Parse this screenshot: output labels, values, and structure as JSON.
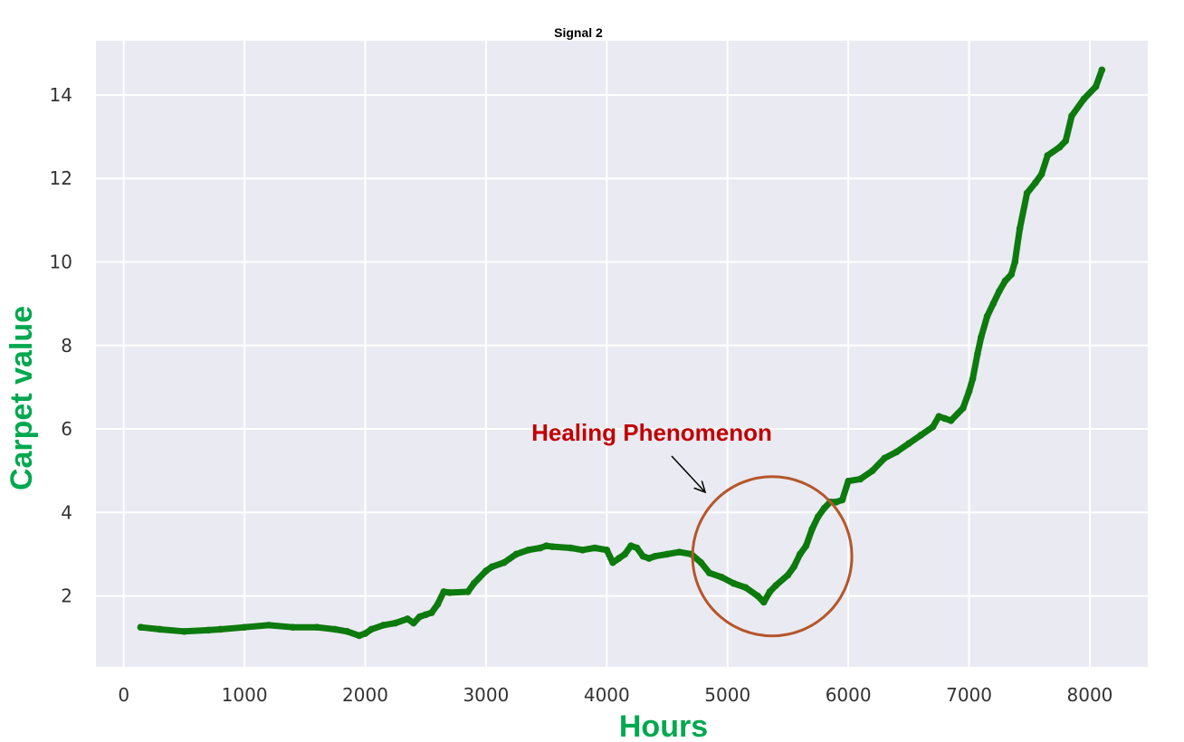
{
  "chart_data": {
    "type": "line",
    "title": "Signal 2",
    "xlabel": "Hours",
    "ylabel": "Carpet value",
    "xlim": [
      -230,
      8480
    ],
    "ylim": [
      0.3,
      15.3
    ],
    "x_ticks": [
      0,
      1000,
      2000,
      3000,
      4000,
      5000,
      6000,
      7000,
      8000
    ],
    "y_ticks": [
      2,
      4,
      6,
      8,
      10,
      12,
      14
    ],
    "grid": true,
    "colors": {
      "line": "#0d7a0d",
      "axis_label": "#00a84f",
      "plot_background": "#eaeaf2",
      "grid": "#ffffff",
      "annotation_text": "#c00000",
      "circle": "#b5562a"
    },
    "series": [
      {
        "x": [
          140,
          300,
          500,
          700,
          800,
          1000,
          1200,
          1400,
          1600,
          1750,
          1850,
          1950,
          2000,
          2050,
          2150,
          2250,
          2350,
          2400,
          2450,
          2500,
          2550,
          2600,
          2650,
          2700,
          2850,
          2900,
          3000,
          3050,
          3150,
          3250,
          3350,
          3450,
          3500,
          3550,
          3700,
          3800,
          3900,
          4000,
          4050,
          4100,
          4150,
          4200,
          4250,
          4300,
          4350,
          4400,
          4500,
          4600,
          4700,
          4780,
          4850,
          4950,
          5050,
          5150,
          5250,
          5300,
          5350,
          5400,
          5500,
          5550,
          5600,
          5650,
          5700,
          5750,
          5800,
          5850,
          5900,
          5950,
          6000,
          6100,
          6200,
          6300,
          6400,
          6500,
          6600,
          6700,
          6750,
          6800,
          6850,
          6950,
          7000,
          7030,
          7070,
          7100,
          7150,
          7200,
          7250,
          7300,
          7350,
          7380,
          7420,
          7480,
          7550,
          7600,
          7650,
          7750,
          7800,
          7850,
          7950,
          8050,
          8100
        ],
        "values": [
          1.25,
          1.2,
          1.15,
          1.18,
          1.2,
          1.25,
          1.3,
          1.25,
          1.25,
          1.2,
          1.15,
          1.05,
          1.1,
          1.2,
          1.3,
          1.35,
          1.45,
          1.35,
          1.5,
          1.55,
          1.6,
          1.8,
          2.1,
          2.08,
          2.1,
          2.3,
          2.6,
          2.7,
          2.8,
          3.0,
          3.1,
          3.15,
          3.2,
          3.18,
          3.15,
          3.1,
          3.15,
          3.1,
          2.8,
          2.9,
          3.0,
          3.2,
          3.15,
          2.95,
          2.9,
          2.95,
          3.0,
          3.05,
          3.0,
          2.8,
          2.55,
          2.45,
          2.3,
          2.2,
          2.0,
          1.85,
          2.1,
          2.25,
          2.5,
          2.7,
          3.0,
          3.2,
          3.6,
          3.9,
          4.1,
          4.25,
          4.25,
          4.3,
          4.75,
          4.8,
          5.0,
          5.3,
          5.45,
          5.65,
          5.85,
          6.05,
          6.3,
          6.25,
          6.2,
          6.5,
          6.9,
          7.2,
          7.8,
          8.2,
          8.7,
          9.0,
          9.3,
          9.55,
          9.7,
          10.0,
          10.8,
          11.65,
          11.9,
          12.1,
          12.55,
          12.75,
          12.9,
          13.5,
          13.9,
          14.2,
          14.6
        ]
      }
    ],
    "annotation": {
      "text": "Healing Phenomenon",
      "circle_center": [
        5370,
        2.95
      ],
      "arrow_tip": [
        4810,
        4.5
      ]
    }
  }
}
